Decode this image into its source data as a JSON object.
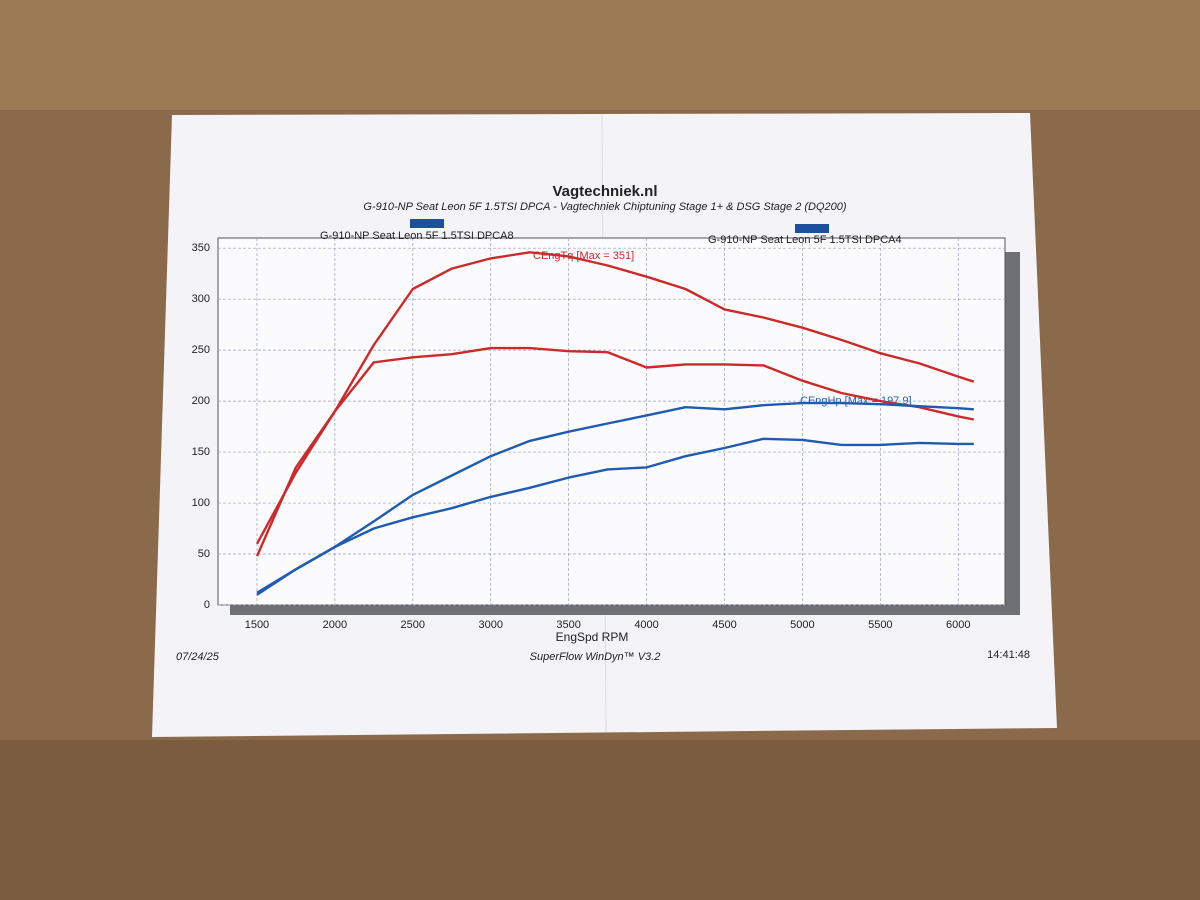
{
  "chart_data": {
    "type": "line",
    "title": "Vagtechniek.nl",
    "subtitle": "G-910-NP Seat Leon 5F 1.5TSI DPCA - Vagtechniek Chiptuning Stage 1+ & DSG Stage 2 (DQ200)",
    "legend": [
      {
        "label": "G-910-NP Seat Leon 5F 1.5TSI DPCA8",
        "color": "#1d4f9c"
      },
      {
        "label": "G-910-NP Seat Leon 5F 1.5TSI DPCA4",
        "color": "#1d4f9c"
      }
    ],
    "annotations": [
      {
        "text": "CEngTq [Max = 351]",
        "color": "#c8282a"
      },
      {
        "text": "CEngHp [Max = 197.9]",
        "color": "#2a5fb0"
      }
    ],
    "x_label": "EngSpd RPM",
    "footer": {
      "date": "07/24/25",
      "software": "SuperFlow WinDyn™ V3.2",
      "time": "14:41:48"
    },
    "x": [
      1500,
      1750,
      2000,
      2250,
      2500,
      2750,
      3000,
      3250,
      3500,
      3750,
      4000,
      4250,
      4500,
      4750,
      5000,
      5250,
      5500,
      5750,
      6000,
      6100
    ],
    "series": [
      {
        "color": "#cc2a2a",
        "values": [
          60,
          130,
          190,
          255,
          310,
          330,
          340,
          346,
          342,
          333,
          322,
          310,
          290,
          282,
          272,
          260,
          247,
          237,
          224,
          219
        ]
      },
      {
        "color": "#cc2a2a",
        "values": [
          48,
          135,
          190,
          238,
          243,
          246,
          252,
          252,
          249,
          248,
          233,
          236,
          236,
          235,
          220,
          208,
          200,
          194,
          185,
          182
        ]
      },
      {
        "color": "#1f5bb0",
        "values": [
          12,
          35,
          57,
          82,
          108,
          127,
          146,
          161,
          170,
          178,
          186,
          194,
          192,
          196,
          198,
          198,
          197,
          195,
          193,
          192
        ]
      },
      {
        "color": "#1f5bb0",
        "values": [
          10,
          35,
          57,
          75,
          86,
          95,
          106,
          115,
          125,
          133,
          135,
          146,
          154,
          163,
          162,
          157,
          157,
          159,
          158,
          158
        ]
      }
    ],
    "xlim": [
      1250,
      6300
    ],
    "xticks": [
      1500,
      2000,
      2500,
      3000,
      3500,
      4000,
      4500,
      5000,
      5500,
      6000
    ],
    "ylim": [
      0,
      360
    ],
    "yticks": [
      0,
      50,
      100,
      150,
      200,
      250,
      300,
      350
    ],
    "grid": true
  }
}
